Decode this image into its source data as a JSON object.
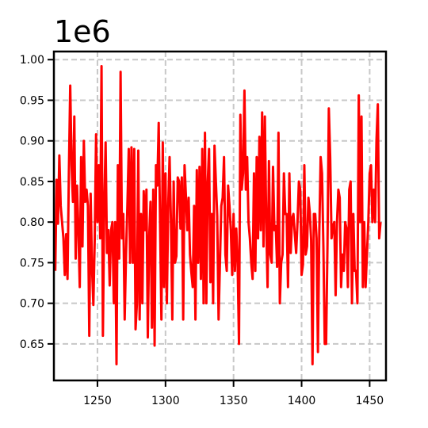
{
  "chart_data": {
    "type": "line",
    "title": "",
    "xlabel": "",
    "ylabel": "",
    "y_offset_text": "1e6",
    "xlim": [
      1218,
      1462
    ],
    "ylim": [
      605000,
      1010000
    ],
    "x_ticks": [
      1250,
      1300,
      1350,
      1400,
      1450
    ],
    "x_tick_labels": [
      "1250",
      "1300",
      "1350",
      "1400",
      "1450"
    ],
    "y_ticks": [
      650000,
      700000,
      750000,
      800000,
      850000,
      900000,
      950000,
      1000000
    ],
    "y_tick_labels": [
      "0.65",
      "0.70",
      "0.75",
      "0.80",
      "0.85",
      "0.90",
      "0.95",
      "1.00"
    ],
    "grid": true,
    "legend": null,
    "series": [
      {
        "color": "#ff0000",
        "x_start": 1219,
        "x_step": 1,
        "values": [
          740000,
          852000,
          798000,
          882000,
          820000,
          800000,
          780000,
          735000,
          785000,
          730000,
          860000,
          968000,
          870000,
          825000,
          930000,
          755000,
          845000,
          790000,
          720000,
          880000,
          770000,
          900000,
          825000,
          840000,
          820000,
          660000,
          835000,
          745000,
          698000,
          780000,
          908000,
          800000,
          870000,
          780000,
          992000,
          660000,
          820000,
          898000,
          762000,
          790000,
          722000,
          790000,
          800000,
          700000,
          800000,
          625000,
          870000,
          755000,
          985000,
          780000,
          810000,
          680000,
          760000,
          820000,
          890000,
          750000,
          892000,
          750000,
          890000,
          668000,
          700000,
          888000,
          680000,
          810000,
          700000,
          838000,
          790000,
          840000,
          658000,
          780000,
          825000,
          670000,
          840000,
          648000,
          870000,
          845000,
          922000,
          800000,
          680000,
          898000,
          720000,
          860000,
          700000,
          820000,
          880000,
          800000,
          680000,
          850000,
          750000,
          758000,
          855000,
          850000,
          792000,
          855000,
          680000,
          870000,
          832000,
          790000,
          830000,
          760000,
          738000,
          720000,
          820000,
          680000,
          864000,
          750000,
          868000,
          730000,
          890000,
          700000,
          910000,
          700000,
          848000,
          890000,
          726000,
          810000,
          700000,
          894000,
          850000,
          808000,
          680000,
          750000,
          820000,
          830000,
          880000,
          760000,
          740000,
          845000,
          820000,
          790000,
          735000,
          810000,
          740000,
          792000,
          750000,
          650000,
          932000,
          840000,
          860000,
          962000,
          840000,
          880000,
          800000,
          780000,
          750000,
          730000,
          860000,
          740000,
          880000,
          780000,
          905000,
          790000,
          935000,
          770000,
          930000,
          800000,
          720000,
          875000,
          760000,
          750000,
          868000,
          790000,
          795000,
          745000,
          910000,
          700000,
          750000,
          760000,
          860000,
          810000,
          810000,
          720000,
          860000,
          762000,
          805000,
          810000,
          785000,
          762000,
          800000,
          850000,
          840000,
          735000,
          748000,
          870000,
          760000,
          770000,
          830000,
          812000,
          778000,
          625000,
          810000,
          810000,
          780000,
          640000,
          788000,
          880000,
          860000,
          770000,
          650000,
          650000,
          770000,
          940000,
          880000,
          780000,
          795000,
          800000,
          710000,
          800000,
          840000,
          830000,
          720000,
          760000,
          740000,
          800000,
          792000,
          720000,
          840000,
          850000,
          700000,
          810000,
          740000,
          740000,
          700000,
          956000,
          800000,
          930000,
          720000,
          800000,
          720000,
          760000,
          800000,
          860000,
          870000,
          800000,
          840000,
          800000,
          900000,
          945000,
          780000,
          800000
        ]
      }
    ]
  }
}
